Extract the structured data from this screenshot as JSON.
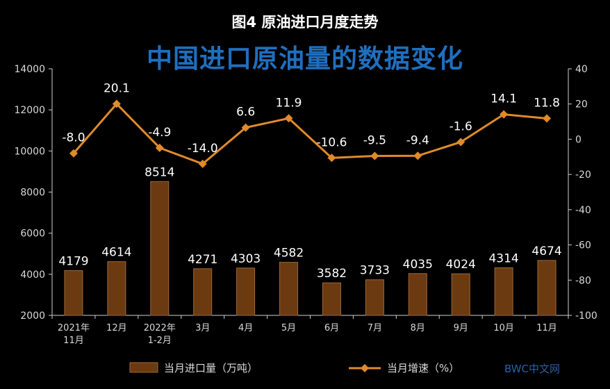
{
  "title": "图4  原油进口月度走势",
  "subtitle": "中国进口原油量的数据变化",
  "watermark": "BWC中文网",
  "chart_data": {
    "type": "bar",
    "categories": [
      [
        "2021年",
        "11月"
      ],
      [
        "12月"
      ],
      [
        "2022年",
        "1-2月"
      ],
      [
        "3月"
      ],
      [
        "4月"
      ],
      [
        "5月"
      ],
      [
        "6月"
      ],
      [
        "7月"
      ],
      [
        "8月"
      ],
      [
        "9月"
      ],
      [
        "10月"
      ],
      [
        "11月"
      ]
    ],
    "series": [
      {
        "name": "当月进口量（万吨）",
        "kind": "bar",
        "axis": "left",
        "color": "#6b3a10",
        "values": [
          4179,
          4614,
          8514,
          4271,
          4303,
          4582,
          3582,
          3733,
          4035,
          4024,
          4314,
          4674
        ]
      },
      {
        "name": "当月增速（%）",
        "kind": "line",
        "axis": "right",
        "color": "#e08a2a",
        "values": [
          -8.0,
          20.1,
          -4.9,
          -14.0,
          6.6,
          11.9,
          -10.6,
          -9.5,
          -9.4,
          -1.6,
          14.1,
          11.8
        ],
        "labels": [
          "-8.0",
          "20.1",
          "-4.9",
          "-14.0",
          "6.6",
          "11.9",
          "-10.6",
          "-9.5",
          "-9.4",
          "-1.6",
          "14.1",
          "11.8"
        ]
      }
    ],
    "y_left": {
      "min": 2000,
      "max": 14000,
      "ticks": [
        "14000",
        "12000",
        "10000",
        "8000",
        "6000",
        "4000",
        "2000"
      ]
    },
    "y_right": {
      "min": -100,
      "max": 40,
      "ticks": [
        "40",
        "20",
        "0",
        "-20",
        "-40",
        "-60",
        "-80",
        "-100"
      ]
    },
    "legend_position": "bottom",
    "grid": false
  }
}
